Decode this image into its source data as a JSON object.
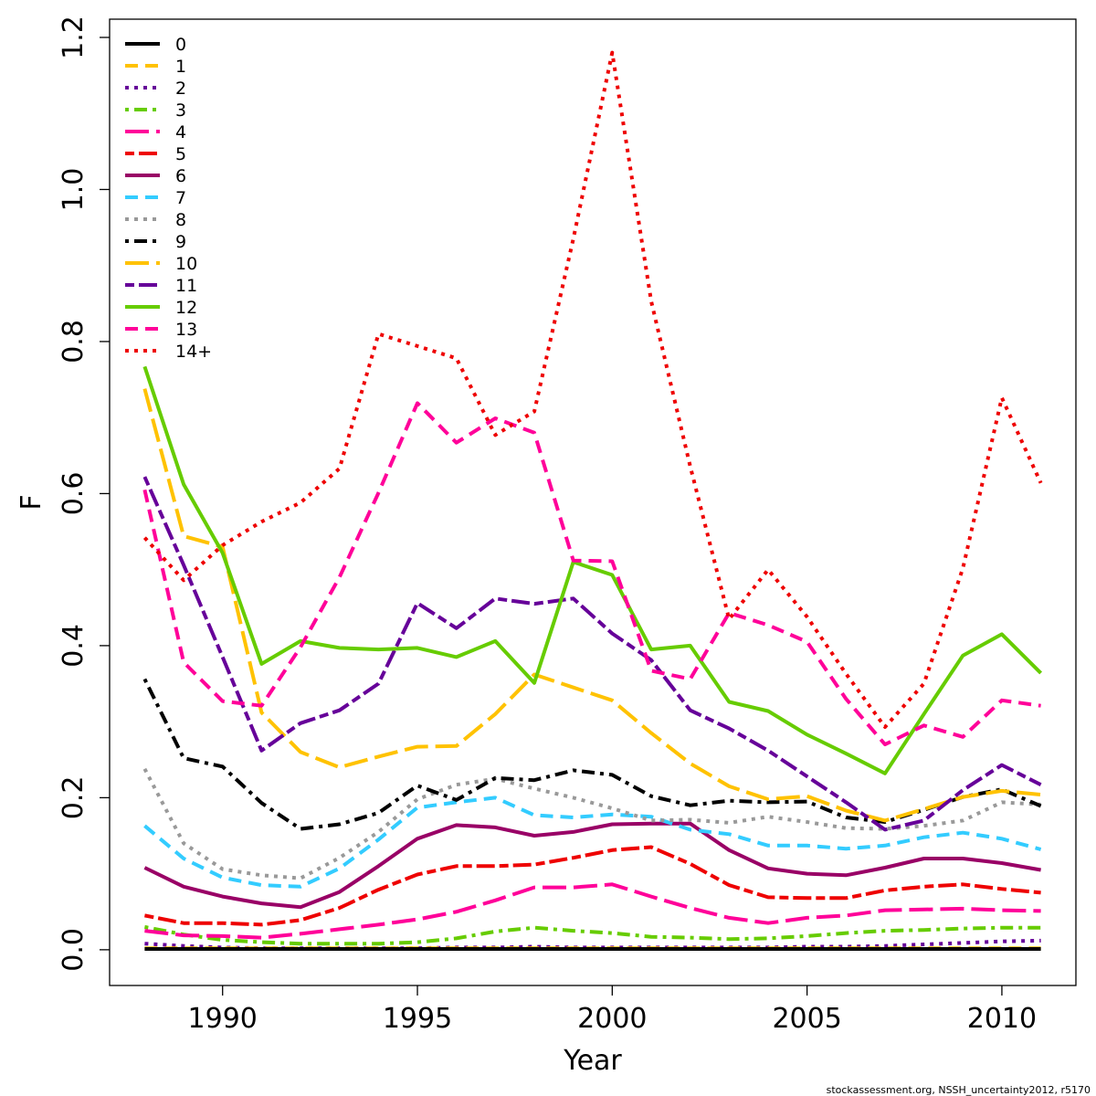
{
  "chart_data": {
    "type": "line",
    "xlabel": "Year",
    "ylabel": "F",
    "xlim": [
      1987.1,
      2011.9
    ],
    "ylim": [
      -0.047,
      1.224
    ],
    "xticks": [
      "1990",
      "1995",
      "2000",
      "2005",
      "2010"
    ],
    "yticks": [
      "0.0",
      "0.2",
      "0.4",
      "0.6",
      "0.8",
      "1.0",
      "1.2"
    ],
    "legend_position": "top-left",
    "grid": false,
    "credit": "stockassessment.org, NSSH_uncertainty2012, r5170",
    "x": [
      1988,
      1989,
      1990,
      1991,
      1992,
      1993,
      1994,
      1995,
      1996,
      1997,
      1998,
      1999,
      2000,
      2001,
      2002,
      2003,
      2004,
      2005,
      2006,
      2007,
      2008,
      2009,
      2010,
      2011
    ],
    "series": [
      {
        "name": "0",
        "color": "#000000",
        "dash": "solid",
        "values": [
          0.001,
          0.001,
          0.001,
          0.001,
          0.001,
          0.001,
          0.001,
          0.001,
          0.001,
          0.001,
          0.001,
          0.001,
          0.001,
          0.001,
          0.001,
          0.001,
          0.001,
          0.001,
          0.001,
          0.001,
          0.001,
          0.001,
          0.001,
          0.001
        ]
      },
      {
        "name": "1",
        "color": "#FFC200",
        "dash": "dashed",
        "values": [
          0.002,
          0.002,
          0.002,
          0.002,
          0.002,
          0.002,
          0.002,
          0.002,
          0.002,
          0.002,
          0.002,
          0.002,
          0.002,
          0.002,
          0.002,
          0.002,
          0.002,
          0.002,
          0.002,
          0.002,
          0.002,
          0.002,
          0.002,
          0.002
        ]
      },
      {
        "name": "2",
        "color": "#660099",
        "dash": "dotted",
        "values": [
          0.008,
          0.005,
          0.003,
          0.002,
          0.002,
          0.002,
          0.002,
          0.002,
          0.003,
          0.003,
          0.004,
          0.003,
          0.003,
          0.003,
          0.003,
          0.003,
          0.003,
          0.004,
          0.004,
          0.005,
          0.007,
          0.009,
          0.011,
          0.012
        ]
      },
      {
        "name": "3",
        "color": "#66CC00",
        "dash": "dotdash",
        "values": [
          0.03,
          0.02,
          0.013,
          0.01,
          0.008,
          0.008,
          0.008,
          0.01,
          0.015,
          0.024,
          0.029,
          0.025,
          0.022,
          0.017,
          0.016,
          0.014,
          0.015,
          0.018,
          0.022,
          0.025,
          0.026,
          0.028,
          0.029,
          0.029
        ]
      },
      {
        "name": "4",
        "color": "#FF0099",
        "dash": "longdash",
        "values": [
          0.025,
          0.019,
          0.018,
          0.016,
          0.021,
          0.027,
          0.033,
          0.04,
          0.05,
          0.065,
          0.082,
          0.082,
          0.086,
          0.07,
          0.055,
          0.042,
          0.035,
          0.042,
          0.045,
          0.052,
          0.053,
          0.054,
          0.052,
          0.051
        ]
      },
      {
        "name": "5",
        "color": "#EE0000",
        "dash": "twodash",
        "values": [
          0.045,
          0.035,
          0.035,
          0.033,
          0.039,
          0.055,
          0.079,
          0.099,
          0.11,
          0.11,
          0.112,
          0.121,
          0.131,
          0.135,
          0.113,
          0.085,
          0.069,
          0.068,
          0.068,
          0.078,
          0.083,
          0.086,
          0.08,
          0.075
        ]
      },
      {
        "name": "6",
        "color": "#990066",
        "dash": "solid",
        "values": [
          0.108,
          0.083,
          0.07,
          0.061,
          0.056,
          0.076,
          0.11,
          0.146,
          0.164,
          0.161,
          0.15,
          0.155,
          0.165,
          0.166,
          0.166,
          0.131,
          0.107,
          0.1,
          0.098,
          0.108,
          0.12,
          0.12,
          0.114,
          0.105
        ]
      },
      {
        "name": "7",
        "color": "#33CCFF",
        "dash": "dashed",
        "values": [
          0.163,
          0.12,
          0.095,
          0.085,
          0.083,
          0.107,
          0.145,
          0.187,
          0.194,
          0.2,
          0.177,
          0.174,
          0.178,
          0.175,
          0.158,
          0.152,
          0.137,
          0.137,
          0.133,
          0.137,
          0.148,
          0.154,
          0.146,
          0.132
        ]
      },
      {
        "name": "8",
        "color": "#999999",
        "dash": "dotted",
        "values": [
          0.238,
          0.14,
          0.106,
          0.098,
          0.094,
          0.121,
          0.155,
          0.198,
          0.217,
          0.225,
          0.212,
          0.2,
          0.186,
          0.17,
          0.171,
          0.167,
          0.175,
          0.168,
          0.16,
          0.159,
          0.163,
          0.17,
          0.194,
          0.191
        ]
      },
      {
        "name": "9",
        "color": "#000000",
        "dash": "dotdash",
        "values": [
          0.356,
          0.252,
          0.241,
          0.193,
          0.159,
          0.165,
          0.18,
          0.216,
          0.197,
          0.226,
          0.223,
          0.236,
          0.23,
          0.202,
          0.19,
          0.196,
          0.194,
          0.195,
          0.174,
          0.168,
          0.184,
          0.201,
          0.211,
          0.189
        ]
      },
      {
        "name": "10",
        "color": "#FFC200",
        "dash": "longdash",
        "values": [
          0.738,
          0.544,
          0.53,
          0.312,
          0.26,
          0.24,
          0.254,
          0.267,
          0.268,
          0.31,
          0.362,
          0.345,
          0.328,
          0.285,
          0.245,
          0.215,
          0.198,
          0.202,
          0.183,
          0.17,
          0.185,
          0.201,
          0.209,
          0.204
        ]
      },
      {
        "name": "11",
        "color": "#660099",
        "dash": "twodash",
        "values": [
          0.622,
          0.506,
          0.385,
          0.262,
          0.298,
          0.315,
          0.35,
          0.456,
          0.423,
          0.462,
          0.455,
          0.462,
          0.416,
          0.381,
          0.315,
          0.291,
          0.262,
          0.228,
          0.194,
          0.158,
          0.17,
          0.21,
          0.243,
          0.217
        ]
      },
      {
        "name": "12",
        "color": "#66CC00",
        "dash": "solid",
        "values": [
          0.767,
          0.612,
          0.522,
          0.376,
          0.406,
          0.397,
          0.395,
          0.397,
          0.385,
          0.406,
          0.351,
          0.51,
          0.493,
          0.395,
          0.4,
          0.326,
          0.314,
          0.283,
          0.258,
          0.232,
          0.31,
          0.387,
          0.415,
          0.364
        ]
      },
      {
        "name": "13",
        "color": "#FF0099",
        "dash": "dashed",
        "values": [
          0.605,
          0.378,
          0.327,
          0.321,
          0.398,
          0.49,
          0.601,
          0.719,
          0.667,
          0.699,
          0.68,
          0.512,
          0.511,
          0.367,
          0.356,
          0.443,
          0.427,
          0.405,
          0.33,
          0.27,
          0.295,
          0.28,
          0.328,
          0.321
        ]
      },
      {
        "name": "14+",
        "color": "#EE0000",
        "dash": "dotted",
        "values": [
          0.542,
          0.486,
          0.532,
          0.563,
          0.588,
          0.633,
          0.81,
          0.794,
          0.778,
          0.677,
          0.708,
          0.935,
          1.18,
          0.853,
          0.636,
          0.435,
          0.5,
          0.438,
          0.363,
          0.293,
          0.35,
          0.502,
          0.726,
          0.614
        ]
      }
    ]
  }
}
